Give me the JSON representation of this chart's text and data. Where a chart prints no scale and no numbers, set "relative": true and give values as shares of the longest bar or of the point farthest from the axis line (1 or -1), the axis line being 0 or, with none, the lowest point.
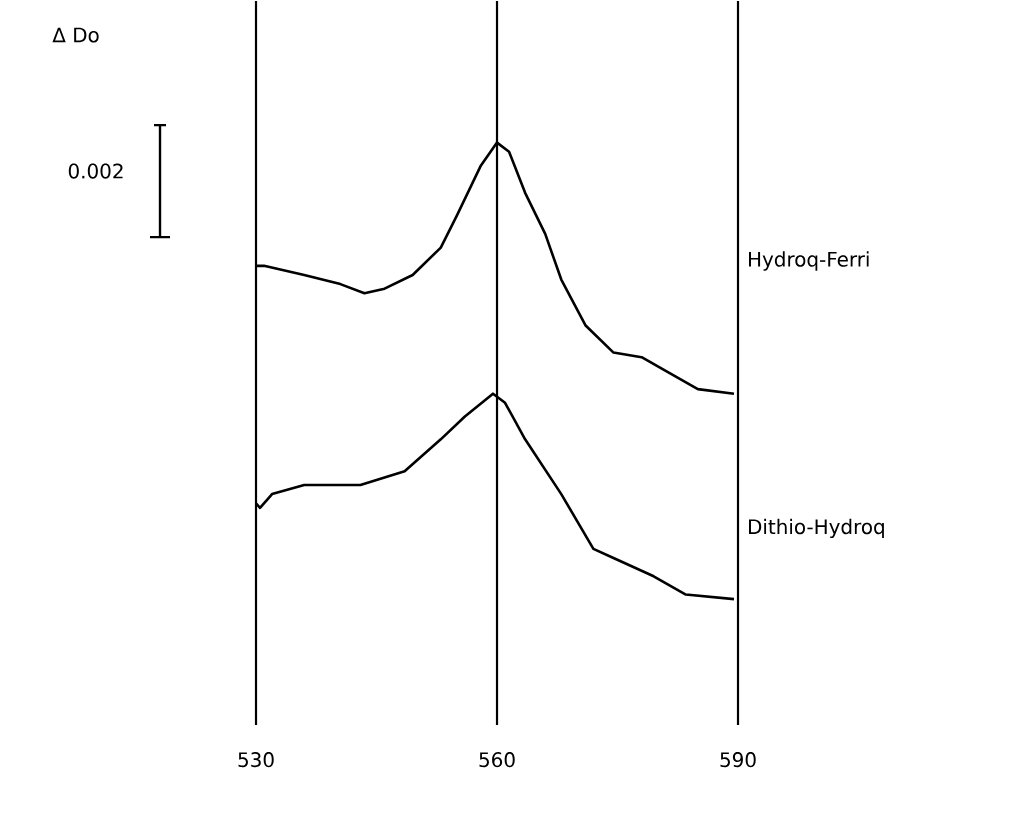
{
  "chart_data": {
    "type": "line",
    "relative": true,
    "xlim": [
      530,
      590
    ],
    "xticks": [
      530,
      560,
      590
    ],
    "grid": "x",
    "annotations": [
      "Δ Do",
      "0.002"
    ],
    "series": [
      {
        "name": "Hydroq-Ferri",
        "color": "#000000",
        "x": [
          530,
          531,
          536,
          540.5,
          543.5,
          546,
          549.5,
          553,
          555,
          558,
          560,
          561.5,
          563.5,
          566,
          568,
          571,
          574.5,
          578,
          581,
          585,
          589.5
        ],
        "values": [
          0.73,
          0.73,
          0.71,
          0.69,
          0.67,
          0.68,
          0.71,
          0.77,
          0.84,
          0.95,
          1,
          0.98,
          0.89,
          0.8,
          0.7,
          0.6,
          0.54,
          0.53,
          0.5,
          0.46,
          0.45
        ]
      },
      {
        "name": "Dithio-Hydroq",
        "color": "#000000",
        "x": [
          530,
          530.5,
          532,
          536,
          543,
          548.5,
          553,
          556,
          559.5,
          561,
          563.5,
          568,
          572,
          574.5,
          579.5,
          583.5,
          589.5
        ],
        "values": [
          0.21,
          0.2,
          0.23,
          0.25,
          0.25,
          0.28,
          0.35,
          0.4,
          0.45,
          0.43,
          0.35,
          0.23,
          0.11,
          0.09,
          0.05,
          0.01,
          0
        ]
      }
    ]
  }
}
